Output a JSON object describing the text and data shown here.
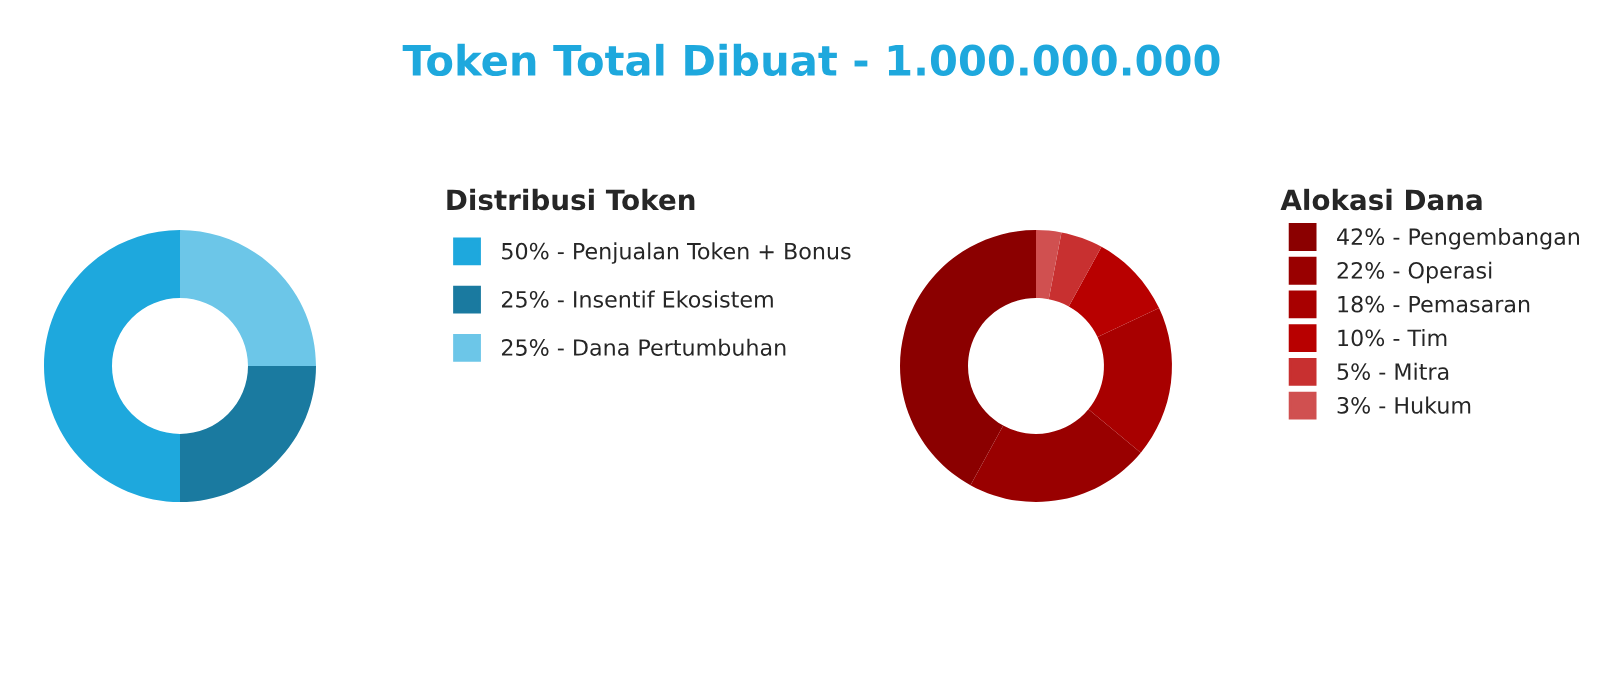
{
  "chart_data": [
    {
      "type": "donut",
      "title": "Token Total Dibuat - 1.000.000.000",
      "legend_title": "Distribusi Token",
      "legend": "right",
      "categories": [
        "50% - Penjualan Token + Bonus",
        "25% - Insentif Ekosistem",
        "25% - Dana Pertumbuhan"
      ],
      "values": [
        50,
        25,
        25
      ],
      "colors": [
        "#1ea8dd",
        "#1a7aa0",
        "#6cc6e8"
      ]
    },
    {
      "type": "donut",
      "legend_title": "Alokasi Dana",
      "legend": "right",
      "categories": [
        "42% - Pengembangan",
        "22% - Operasi",
        "18% - Pemasaran",
        "10% - Tim",
        "5% - Mitra",
        "3% - Hukum"
      ],
      "values": [
        42,
        22,
        18,
        10,
        5,
        3
      ],
      "colors": [
        "#8b0000",
        "#990000",
        "#a80000",
        "#b80000",
        "#c83030",
        "#d05050"
      ]
    }
  ]
}
